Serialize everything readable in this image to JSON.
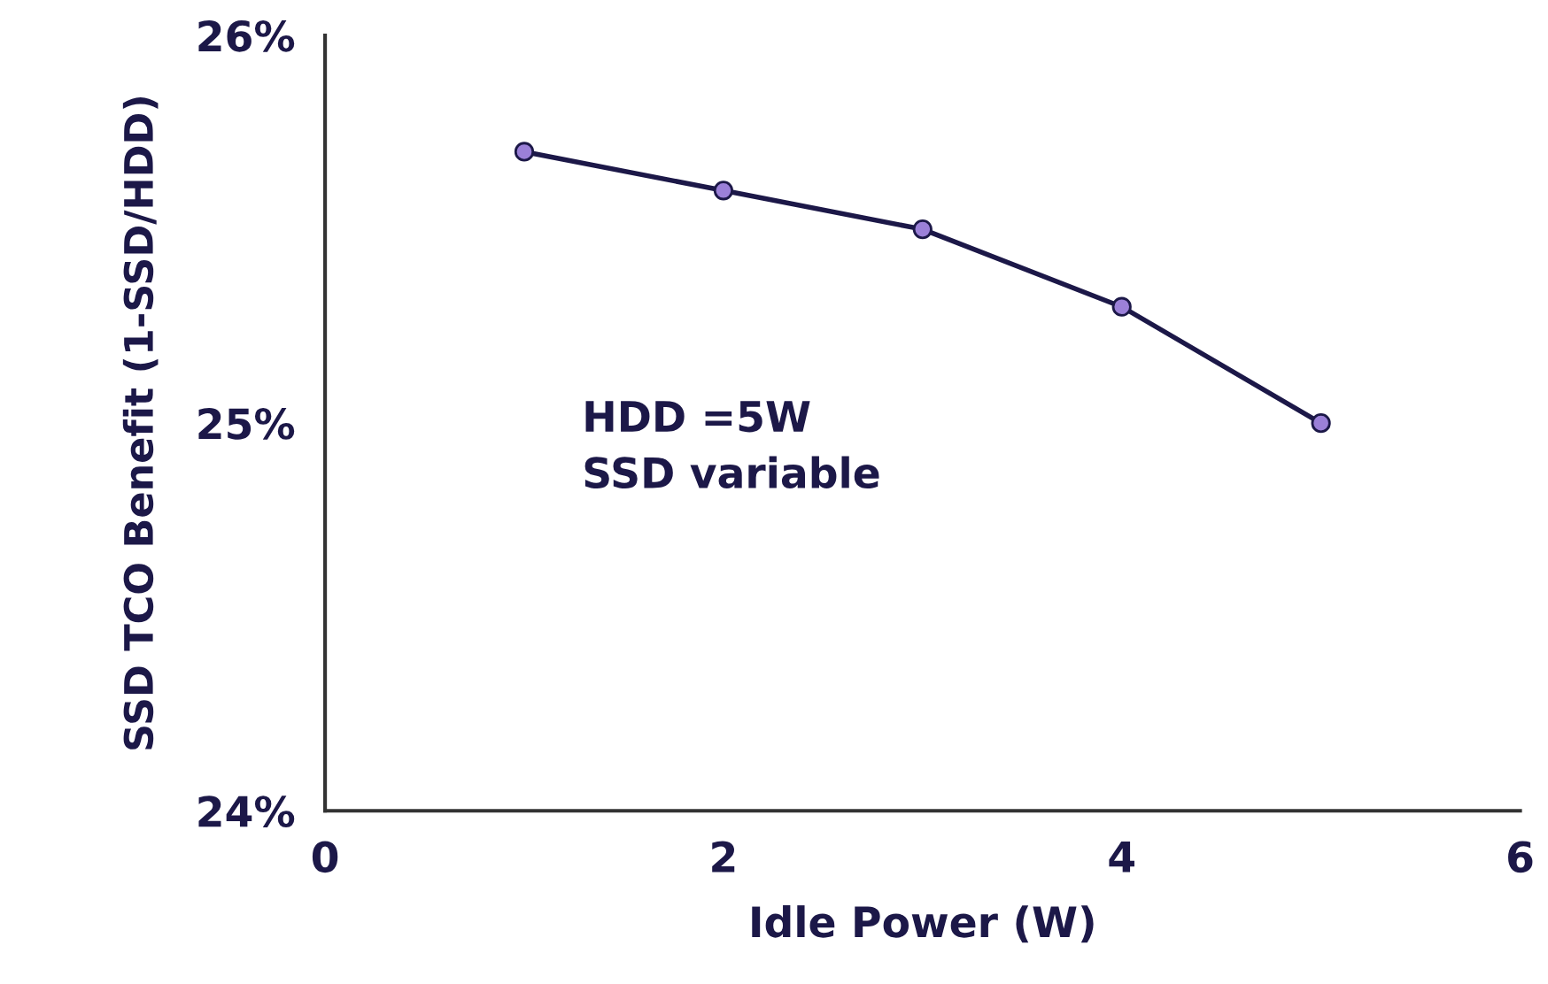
{
  "chart_data": {
    "type": "line",
    "xlabel": "Idle Power (W)",
    "ylabel": "SSD TCO Benefit (1-SSD/HDD)",
    "x": [
      1,
      2,
      3,
      4,
      5
    ],
    "series": [
      {
        "color": "#1c1848",
        "values": [
          25.7,
          25.6,
          25.5,
          25.3,
          25.0
        ]
      }
    ],
    "marker": "circle",
    "line_style": "solid",
    "grid": false,
    "legend": false,
    "xlim": [
      0,
      6
    ],
    "xticks": [
      0,
      2,
      4,
      6
    ],
    "ylim": [
      24,
      26
    ],
    "yticks": [
      {
        "value": 24,
        "label": "24%"
      },
      {
        "value": 25,
        "label": "25%"
      },
      {
        "value": 26,
        "label": "26%"
      }
    ],
    "annotations": [
      "HDD =5W\nSSD variable"
    ]
  }
}
